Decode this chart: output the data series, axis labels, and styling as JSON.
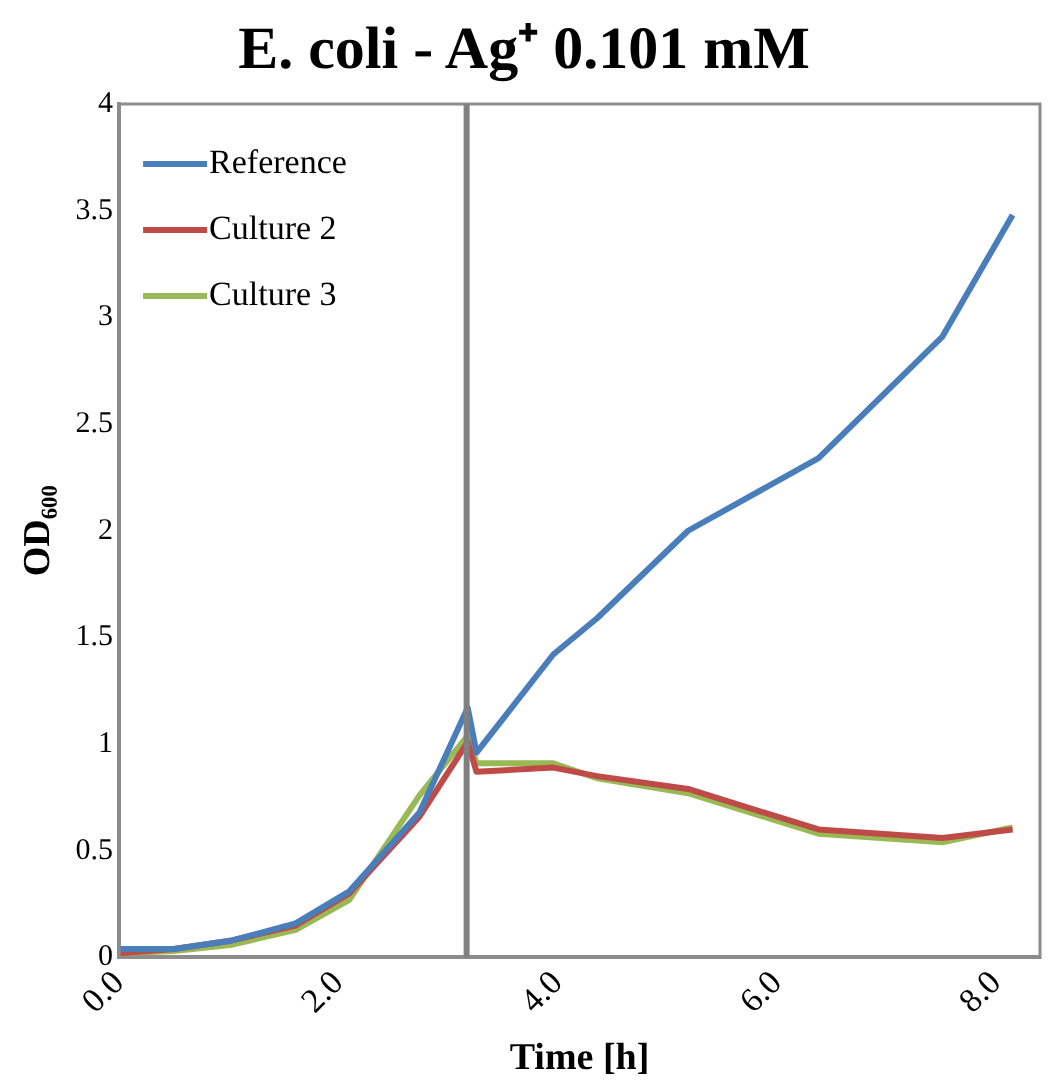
{
  "chart_data": {
    "type": "line",
    "title": "E. coli - Ag⁺ 0.101 mM",
    "xlabel": "Time [h]",
    "ylabel": "OD₆₀₀",
    "x": [
      0,
      0.5,
      1.03,
      1.61,
      2.1,
      2.74,
      3.18,
      3.26,
      3.96,
      4.36,
      5.19,
      6.38,
      7.51,
      8.15
    ],
    "series": [
      {
        "name": "Reference",
        "color": "#4a7ebb",
        "values": [
          0.04,
          0.04,
          0.08,
          0.16,
          0.31,
          0.68,
          1.17,
          0.96,
          1.42,
          1.59,
          2.0,
          2.34,
          2.91,
          3.48
        ]
      },
      {
        "name": "Culture 2",
        "color": "#be4b48",
        "values": [
          0.02,
          0.04,
          0.08,
          0.15,
          0.3,
          0.66,
          1.01,
          0.87,
          0.89,
          0.85,
          0.79,
          0.6,
          0.56,
          0.6
        ]
      },
      {
        "name": "Culture 3",
        "color": "#98b954",
        "values": [
          0.02,
          0.03,
          0.06,
          0.13,
          0.27,
          0.76,
          1.04,
          0.91,
          0.91,
          0.84,
          0.77,
          0.58,
          0.54,
          0.61
        ]
      }
    ],
    "xlim": [
      0,
      8.4
    ],
    "xticks": [
      {
        "value": 0,
        "label": "0.0"
      },
      {
        "value": 2,
        "label": "2.0"
      },
      {
        "value": 4,
        "label": "4.0"
      },
      {
        "value": 6,
        "label": "6.0"
      },
      {
        "value": 8,
        "label": "8.0"
      }
    ],
    "ylim": [
      0,
      4
    ],
    "yticks": [
      0,
      0.5,
      1,
      1.5,
      2,
      2.5,
      3,
      3.5,
      4
    ],
    "ref_lines": [
      {
        "axis": "x",
        "value": 3.17,
        "color": "#808080"
      }
    ],
    "grid": false,
    "legend": "top left",
    "marker": "none",
    "line_style": "solid"
  }
}
